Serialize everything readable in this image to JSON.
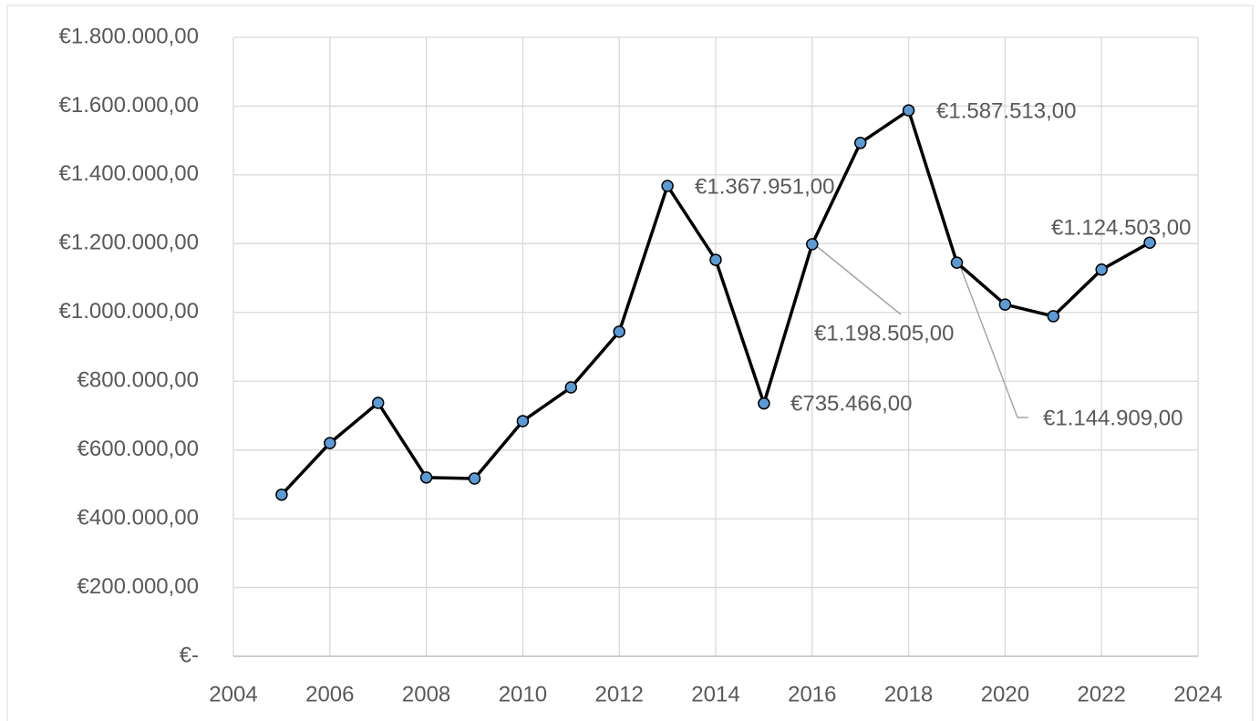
{
  "chart_data": {
    "type": "line",
    "x": [
      2005,
      2006,
      2007,
      2008,
      2009,
      2010,
      2011,
      2012,
      2013,
      2014,
      2015,
      2016,
      2017,
      2018,
      2019,
      2020,
      2021,
      2022,
      2023
    ],
    "values": [
      470000,
      620000,
      737000,
      520000,
      517000,
      684000,
      782000,
      944000,
      1367951,
      1153000,
      735466,
      1198505,
      1493000,
      1587513,
      1144909,
      1023000,
      989000,
      1124503,
      1203000
    ],
    "value_labels": [
      null,
      null,
      null,
      null,
      null,
      null,
      null,
      null,
      "€1.367.951,00",
      null,
      "€735.466,00",
      "€1.198.505,00",
      null,
      "€1.587.513,00",
      "€1.144.909,00",
      null,
      null,
      "€1.124.503,00",
      null
    ],
    "color": "#000000",
    "marker_color": "#5b9bd5",
    "xlim": [
      2004,
      2024
    ],
    "xticks": [
      2004,
      2006,
      2008,
      2010,
      2012,
      2014,
      2016,
      2018,
      2020,
      2022,
      2024
    ],
    "ylim": [
      0,
      1800000
    ],
    "yticks": [
      {
        "value": 0,
        "label": "€-"
      },
      {
        "value": 200000,
        "label": "€200.000,00"
      },
      {
        "value": 400000,
        "label": "€400.000,00"
      },
      {
        "value": 600000,
        "label": "€600.000,00"
      },
      {
        "value": 800000,
        "label": "€800.000,00"
      },
      {
        "value": 1000000,
        "label": "€1.000.000,00"
      },
      {
        "value": 1200000,
        "label": "€1.200.000,00"
      },
      {
        "value": 1400000,
        "label": "€1.400.000,00"
      },
      {
        "value": 1600000,
        "label": "€1.600.000,00"
      },
      {
        "value": 1800000,
        "label": "€1.800.000,00"
      }
    ],
    "grid": true
  }
}
